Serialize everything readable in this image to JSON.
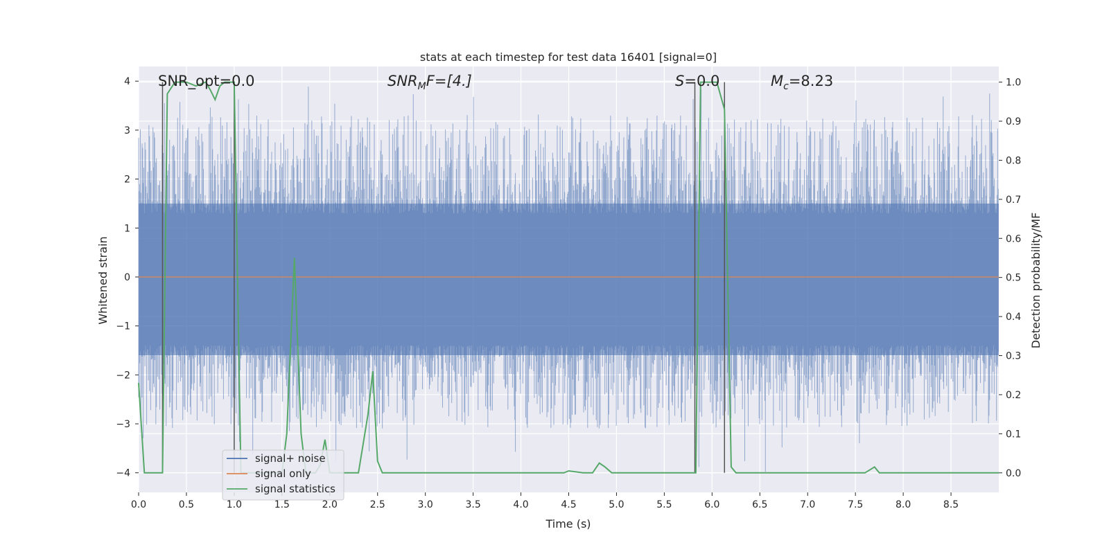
{
  "chart_data": {
    "type": "line",
    "title": "stats at each timestep for test data 16401 [signal=0]",
    "xlabel": "Time (s)",
    "ylabel_left": "Whitened strain",
    "ylabel_right": "Detection probability/MF",
    "xlim": [
      0.0,
      9.0
    ],
    "ylim_left": [
      -4.4,
      4.3
    ],
    "ylim_right": [
      -0.05,
      1.04
    ],
    "x_ticks": [
      "0.0",
      "0.5",
      "1.0",
      "1.5",
      "2.0",
      "2.5",
      "3.0",
      "3.5",
      "4.0",
      "4.5",
      "5.0",
      "5.5",
      "6.0",
      "6.5",
      "7.0",
      "7.5",
      "8.0",
      "8.5"
    ],
    "y_left_ticks": [
      "4",
      "3",
      "2",
      "1",
      "0",
      "−1",
      "−2",
      "−3",
      "−4"
    ],
    "y_right_ticks": [
      "1.0",
      "0.9",
      "0.8",
      "0.7",
      "0.6",
      "0.5",
      "0.4",
      "0.3",
      "0.2",
      "0.1",
      "0.0"
    ],
    "grid": true,
    "legend_position": "lower-left",
    "annotations": {
      "snr_opt": "SNR_opt=0.0",
      "snr_mf_main": "SNR",
      "snr_mf_sub": "M",
      "snr_mf_rest": "F=[4.]",
      "s_main": "S",
      "s_rest": "=0.0",
      "mc_main": "M",
      "mc_sub": "c",
      "mc_rest": "=8.23"
    },
    "vertical_markers_s": [
      0.25,
      1.0,
      5.82,
      6.13
    ],
    "series": [
      {
        "name": "signal+ noise",
        "axis": "left",
        "color": "#4c72b0",
        "envelope_approx": {
          "typical_max": 1.5,
          "typical_min": -1.6,
          "peak_max": 3.9,
          "peak_min": -4.0
        }
      },
      {
        "name": "signal only",
        "axis": "left",
        "color": "#dd8452",
        "x": [
          0.0,
          9.0
        ],
        "y": [
          0.0,
          0.0
        ]
      },
      {
        "name": "signal statistics",
        "axis": "right",
        "color": "#55a868",
        "x": [
          0.0,
          0.06,
          0.25,
          0.3,
          0.38,
          0.5,
          0.6,
          0.7,
          0.75,
          0.8,
          0.85,
          0.9,
          0.95,
          1.0,
          1.07,
          1.1,
          1.5,
          1.55,
          1.63,
          1.7,
          1.75,
          1.85,
          1.9,
          1.95,
          2.0,
          2.3,
          2.4,
          2.45,
          2.5,
          2.55,
          2.6,
          4.45,
          4.5,
          4.65,
          4.75,
          4.82,
          4.88,
          4.95,
          5.0,
          5.78,
          5.83,
          5.88,
          6.05,
          6.13,
          6.2,
          6.25,
          7.6,
          7.7,
          7.75,
          7.8,
          9.0
        ],
        "y": [
          0.23,
          0.0,
          0.0,
          0.97,
          1.0,
          1.0,
          0.99,
          1.0,
          0.98,
          0.955,
          0.99,
          1.0,
          1.0,
          1.0,
          0.0,
          0.0,
          0.0,
          0.1,
          0.55,
          0.1,
          0.0,
          0.0,
          0.02,
          0.085,
          0.0,
          0.0,
          0.15,
          0.26,
          0.03,
          0.0,
          0.0,
          0.0,
          0.005,
          0.0,
          0.0,
          0.025,
          0.015,
          0.0,
          0.0,
          0.0,
          0.0,
          1.0,
          1.0,
          0.93,
          0.015,
          0.0,
          0.0,
          0.015,
          0.0,
          0.0,
          0.0
        ]
      }
    ]
  }
}
